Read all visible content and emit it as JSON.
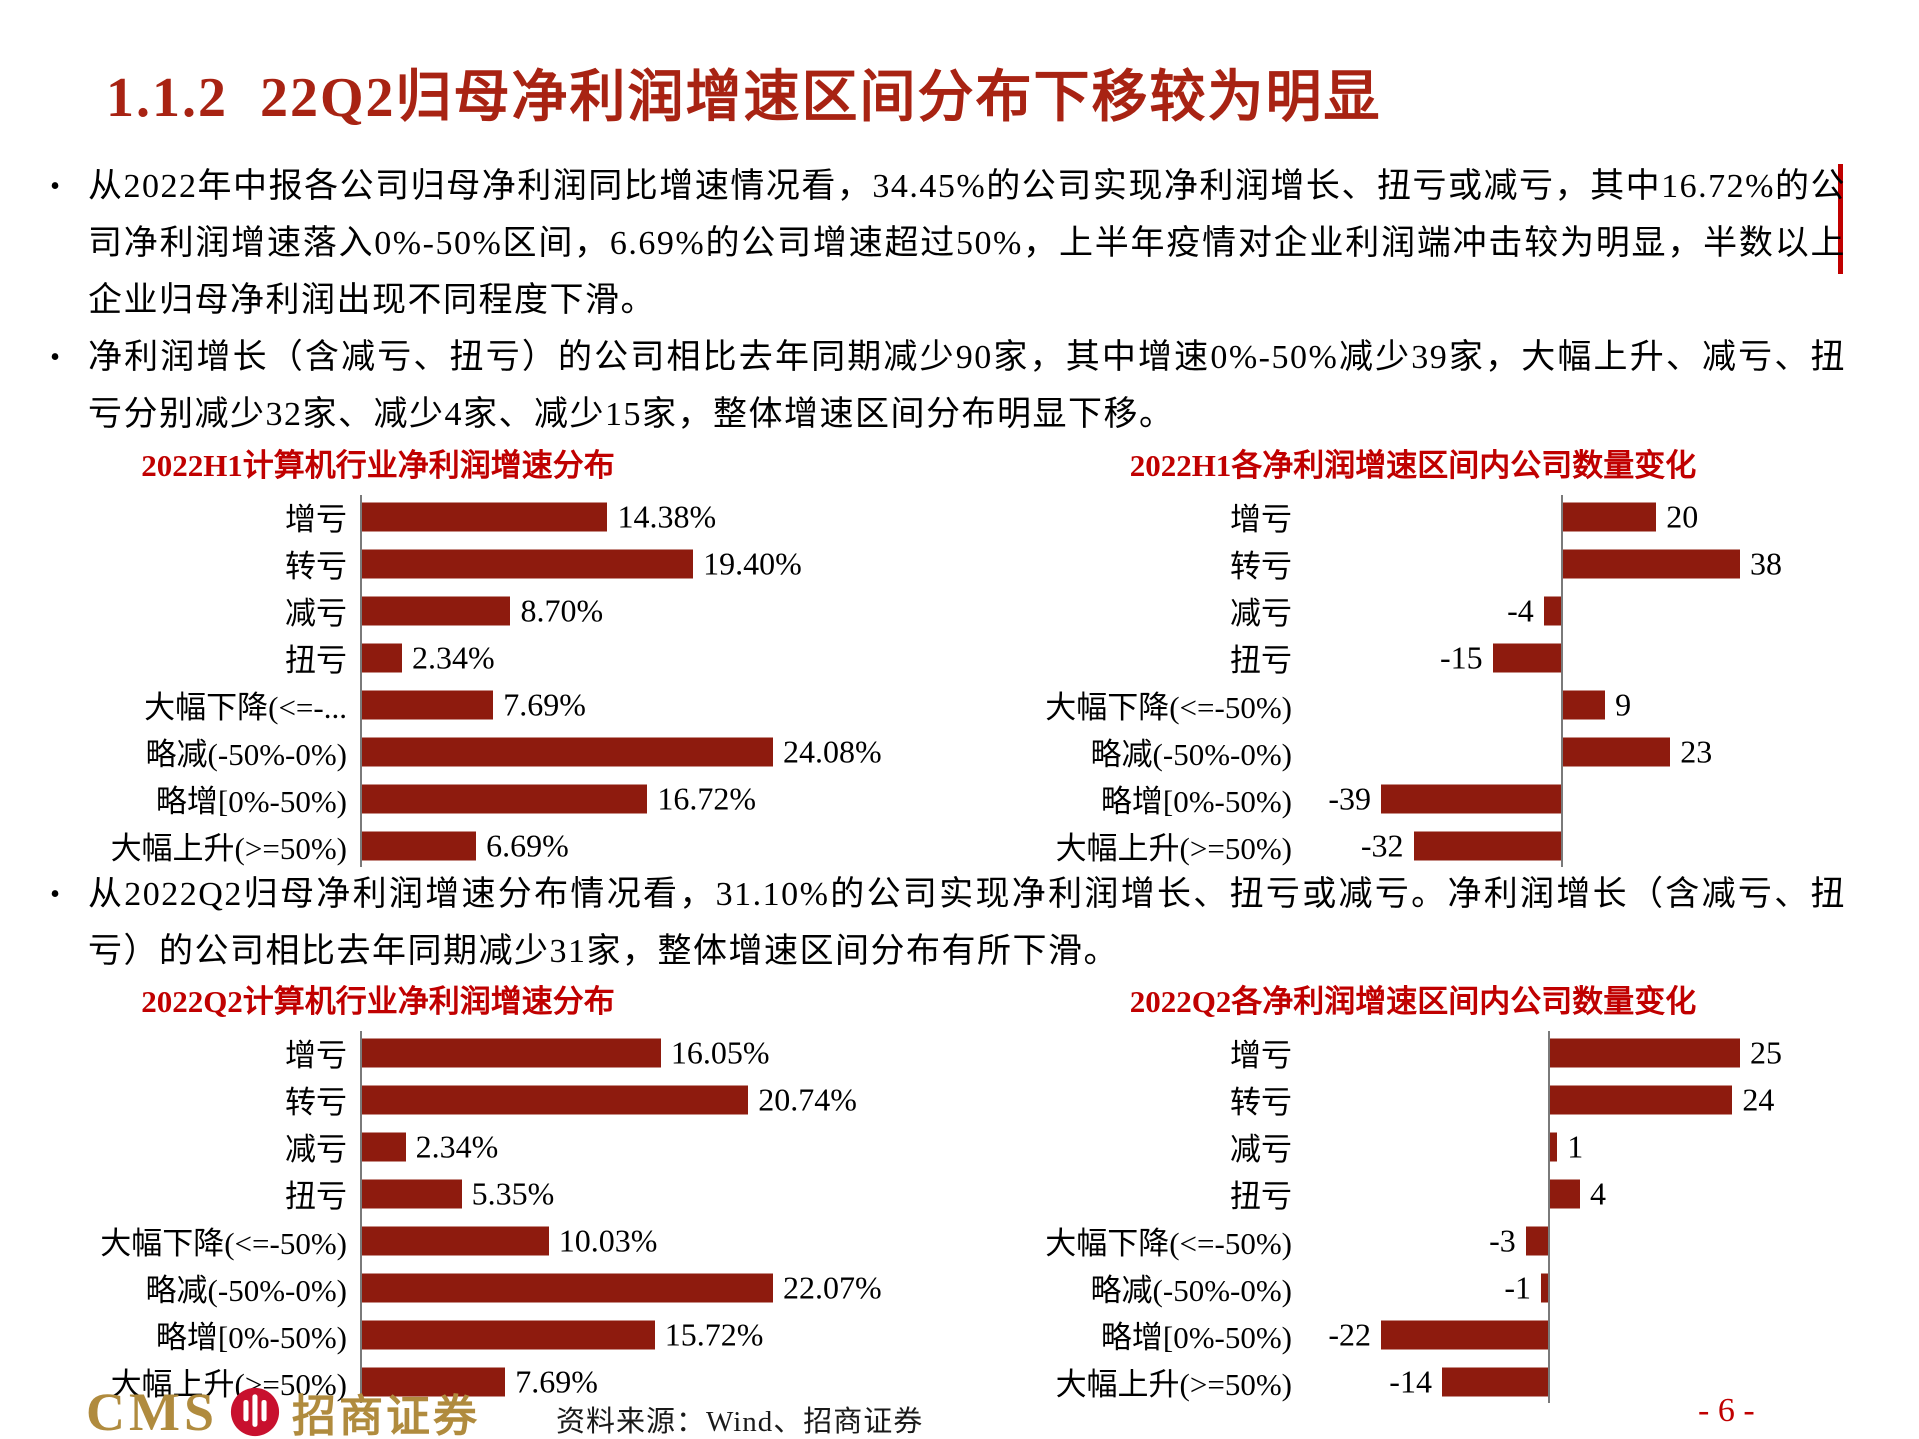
{
  "slide": {
    "title": "1.1.2  22Q2归母净利润增速区间分布下移较为明显",
    "bullet_char": "•",
    "bullets": [
      "从2022年中报各公司归母净利润同比增速情况看，34.45%的公司实现净利润增长、扭亏或减亏，其中16.72%的公司净利润增速落入0%-50%区间，6.69%的公司增速超过50%，上半年疫情对企业利润端冲击较为明显，半数以上企业归母净利润出现不同程度下滑。",
      "净利润增长（含减亏、扭亏）的公司相比去年同期减少90家，其中增速0%-50%减少39家，大幅上升、减亏、扭亏分别减少32家、减少4家、减少15家，整体增速区间分布明显下移。",
      "从2022Q2归母净利润增速分布情况看，31.10%的公司实现净利润增长、扭亏或减亏。净利润增长（含减亏、扭亏）的公司相比去年同期减少31家，整体增速区间分布有所下滑。"
    ],
    "footer": {
      "logo_text": "CMS",
      "logo_cn": "招商证券",
      "source": "资料来源：Wind、招商证券",
      "page": "- 6 -"
    },
    "colors": {
      "heading_red": "#a82313",
      "chart_title_red": "#c00000",
      "bar_red": "#8e1b0e",
      "page_red": "#c00000",
      "logo_gold": "#b08b3e",
      "logo_emblem_red": "#c8102e",
      "axis_gray": "#7a7a7a",
      "text_black": "#000000"
    }
  },
  "chart_data": [
    {
      "type": "bar",
      "orientation": "horizontal",
      "title": "2022H1计算机行业净利润增速分布",
      "categories": [
        "增亏",
        "转亏",
        "减亏",
        "扭亏",
        "大幅下降(<=-...",
        "略减(-50%-0%)",
        "略增[0%-50%)",
        "大幅上升(>=50%)"
      ],
      "values": [
        14.38,
        19.4,
        8.7,
        2.34,
        7.69,
        24.08,
        16.72,
        6.69
      ],
      "value_labels": [
        "14.38%",
        "19.40%",
        "8.70%",
        "2.34%",
        "7.69%",
        "24.08%",
        "16.72%",
        "6.69%"
      ],
      "unit": "%",
      "xlim": [
        0,
        26
      ],
      "grid": false,
      "legend": "none",
      "bar_color": "#8e1b0e"
    },
    {
      "type": "bar",
      "orientation": "horizontal",
      "title": "2022H1各净利润增速区间内公司数量变化",
      "categories": [
        "增亏",
        "转亏",
        "减亏",
        "扭亏",
        "大幅下降(<=-50%)",
        "略减(-50%-0%)",
        "略增[0%-50%)",
        "大幅上升(>=50%)"
      ],
      "values": [
        20,
        38,
        -4,
        -15,
        9,
        23,
        -39,
        -32
      ],
      "value_labels": [
        "20",
        "38",
        "-4",
        "-15",
        "9",
        "23",
        "-39",
        "-32"
      ],
      "unit": "家",
      "xlim": [
        -45,
        45
      ],
      "grid": false,
      "legend": "none",
      "bar_color": "#8e1b0e"
    },
    {
      "type": "bar",
      "orientation": "horizontal",
      "title": "2022Q2计算机行业净利润增速分布",
      "categories": [
        "增亏",
        "转亏",
        "减亏",
        "扭亏",
        "大幅下降(<=-50%)",
        "略减(-50%-0%)",
        "略增[0%-50%)",
        "大幅上升(>=50%)"
      ],
      "values": [
        16.05,
        20.74,
        2.34,
        5.35,
        10.03,
        22.07,
        15.72,
        7.69
      ],
      "value_labels": [
        "16.05%",
        "20.74%",
        "2.34%",
        "5.35%",
        "10.03%",
        "22.07%",
        "15.72%",
        "7.69%"
      ],
      "unit": "%",
      "xlim": [
        0,
        24
      ],
      "grid": false,
      "legend": "none",
      "bar_color": "#8e1b0e"
    },
    {
      "type": "bar",
      "orientation": "horizontal",
      "title": "2022Q2各净利润增速区间内公司数量变化",
      "categories": [
        "增亏",
        "转亏",
        "减亏",
        "扭亏",
        "大幅下降(<=-50%)",
        "略减(-50%-0%)",
        "略增[0%-50%)",
        "大幅上升(>=50%)"
      ],
      "values": [
        25,
        24,
        1,
        4,
        -3,
        -1,
        -22,
        -14
      ],
      "value_labels": [
        "25",
        "24",
        "1",
        "4",
        "-3",
        "-1",
        "-22",
        "-14"
      ],
      "unit": "家",
      "xlim": [
        -25,
        30
      ],
      "grid": false,
      "legend": "none",
      "bar_color": "#8e1b0e"
    }
  ]
}
